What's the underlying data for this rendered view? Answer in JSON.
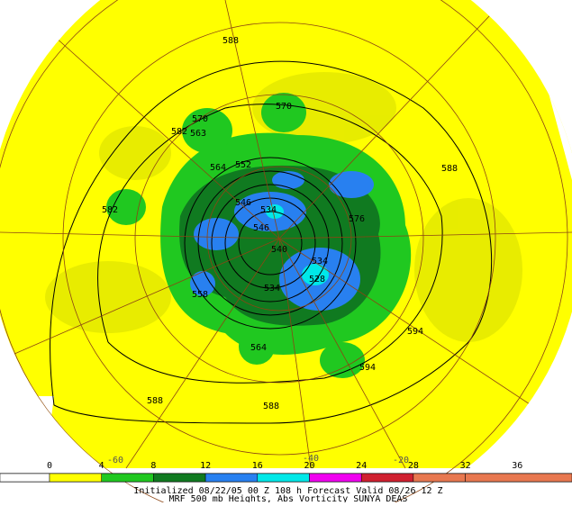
{
  "map": {
    "contour_labels": [
      "588",
      "570",
      "570",
      "582",
      "563",
      "564",
      "552",
      "588",
      "582",
      "546",
      "534",
      "576",
      "546",
      "540",
      "534",
      "528",
      "558",
      "534",
      "594",
      "594",
      "564",
      "588",
      "588"
    ],
    "lon_labels": [
      "-60",
      "-40",
      "-20"
    ]
  },
  "colorbar": {
    "labels": [
      "0",
      "4",
      "8",
      "12",
      "16",
      "20",
      "24",
      "28",
      "32",
      "36"
    ],
    "colors": [
      "#ffffff",
      "#ffff00",
      "#20c820",
      "#107a20",
      "#2880f0",
      "#00e8e8",
      "#f000f0",
      "#d02030",
      "#e87850",
      "#e87850"
    ]
  },
  "footer": {
    "line1": "Initialized 08/22/05 00 Z  108 h Forecast Valid 08/26 12 Z",
    "line2": "MRF 500 mb Heights, Abs Vorticity      SUNYA DEAS"
  }
}
